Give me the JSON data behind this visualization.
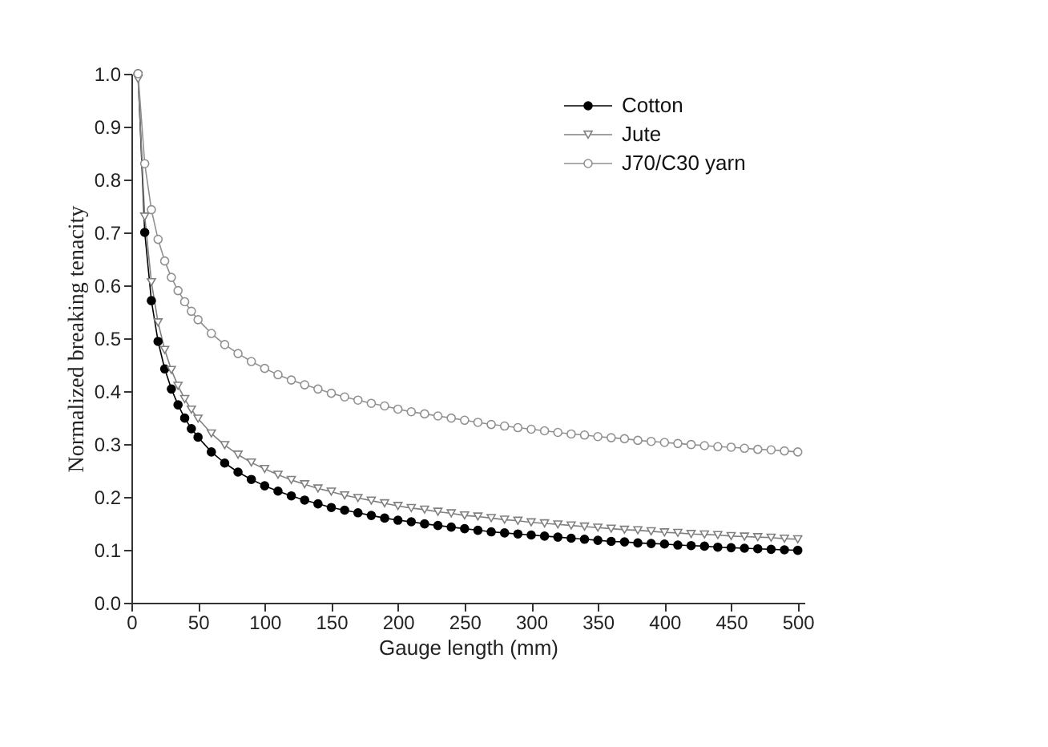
{
  "chart_data": {
    "type": "line",
    "xlabel": "Gauge length (mm)",
    "ylabel": "Normalized breaking tenacity",
    "x": [
      5,
      10,
      15,
      20,
      25,
      30,
      35,
      40,
      45,
      50,
      60,
      70,
      80,
      90,
      100,
      110,
      120,
      130,
      140,
      150,
      160,
      170,
      180,
      190,
      200,
      210,
      220,
      230,
      240,
      250,
      260,
      270,
      280,
      290,
      300,
      310,
      320,
      330,
      340,
      350,
      360,
      370,
      380,
      390,
      400,
      410,
      420,
      430,
      440,
      450,
      460,
      470,
      480,
      490,
      500
    ],
    "series": [
      {
        "name": "Cotton",
        "color": "#000000",
        "marker": "circle",
        "values": [
          1.0,
          0.7,
          0.571,
          0.494,
          0.442,
          0.404,
          0.374,
          0.349,
          0.329,
          0.313,
          0.285,
          0.264,
          0.247,
          0.233,
          0.221,
          0.211,
          0.202,
          0.194,
          0.187,
          0.18,
          0.175,
          0.17,
          0.165,
          0.16,
          0.156,
          0.153,
          0.149,
          0.146,
          0.143,
          0.14,
          0.137,
          0.134,
          0.132,
          0.13,
          0.128,
          0.126,
          0.124,
          0.122,
          0.12,
          0.118,
          0.116,
          0.115,
          0.113,
          0.112,
          0.111,
          0.109,
          0.108,
          0.107,
          0.105,
          0.104,
          0.103,
          0.102,
          0.101,
          0.1,
          0.099
        ]
      },
      {
        "name": "Jute",
        "color": "#808080",
        "marker": "triangle",
        "values": [
          0.99,
          0.73,
          0.606,
          0.53,
          0.478,
          0.44,
          0.41,
          0.385,
          0.365,
          0.348,
          0.32,
          0.298,
          0.28,
          0.265,
          0.253,
          0.242,
          0.232,
          0.224,
          0.216,
          0.21,
          0.203,
          0.198,
          0.193,
          0.188,
          0.183,
          0.179,
          0.176,
          0.172,
          0.169,
          0.165,
          0.163,
          0.16,
          0.157,
          0.155,
          0.152,
          0.15,
          0.148,
          0.146,
          0.144,
          0.142,
          0.14,
          0.138,
          0.137,
          0.135,
          0.133,
          0.132,
          0.13,
          0.129,
          0.128,
          0.126,
          0.125,
          0.124,
          0.123,
          0.121,
          0.12
        ]
      },
      {
        "name": "J70/C30 yarn",
        "color": "#909090",
        "marker": "circle",
        "values": [
          1.0,
          0.83,
          0.743,
          0.687,
          0.646,
          0.615,
          0.59,
          0.569,
          0.551,
          0.535,
          0.509,
          0.488,
          0.471,
          0.456,
          0.443,
          0.431,
          0.421,
          0.412,
          0.404,
          0.396,
          0.389,
          0.383,
          0.377,
          0.372,
          0.366,
          0.361,
          0.357,
          0.353,
          0.349,
          0.345,
          0.341,
          0.337,
          0.334,
          0.331,
          0.328,
          0.325,
          0.322,
          0.319,
          0.317,
          0.314,
          0.312,
          0.31,
          0.307,
          0.305,
          0.303,
          0.301,
          0.299,
          0.297,
          0.295,
          0.294,
          0.292,
          0.29,
          0.289,
          0.287,
          0.285
        ]
      }
    ],
    "xlim": [
      0,
      505
    ],
    "xticks": [
      0,
      50,
      100,
      150,
      200,
      250,
      300,
      350,
      400,
      450,
      500
    ],
    "ylim": [
      0,
      1.0
    ],
    "yticks": [
      {
        "value": 0,
        "label": "0.0"
      },
      0.1,
      0.2,
      0.3,
      0.4,
      0.5,
      0.6,
      0.7,
      0.8,
      0.9,
      {
        "value": 1,
        "label": "1.0"
      }
    ],
    "legend": "top right",
    "grid": false,
    "line_style": "solid"
  }
}
